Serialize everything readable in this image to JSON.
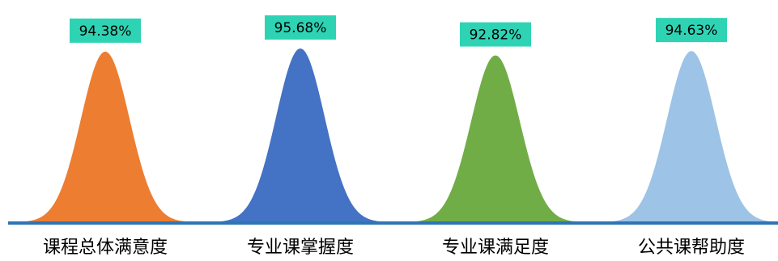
{
  "chart_data": {
    "type": "area",
    "chart_style": "bell-shaped peaks",
    "categories": [
      "课程总体满意度",
      "专业课掌握度",
      "专业课满足度",
      "公共课帮助度"
    ],
    "values": [
      94.38,
      95.68,
      92.82,
      94.63
    ],
    "value_labels": [
      "94.38%",
      "95.68%",
      "92.82%",
      "94.63%"
    ],
    "unit": "%",
    "title": "",
    "xlabel": "",
    "ylabel": "",
    "ylim": [
      0,
      100
    ],
    "grid": false,
    "legend": "none",
    "colors": [
      "#ED7D31",
      "#4472C4",
      "#70AD47",
      "#9DC3E6"
    ],
    "label_box_color": "#2ED3B4",
    "baseline_color": "#2E75B6"
  }
}
